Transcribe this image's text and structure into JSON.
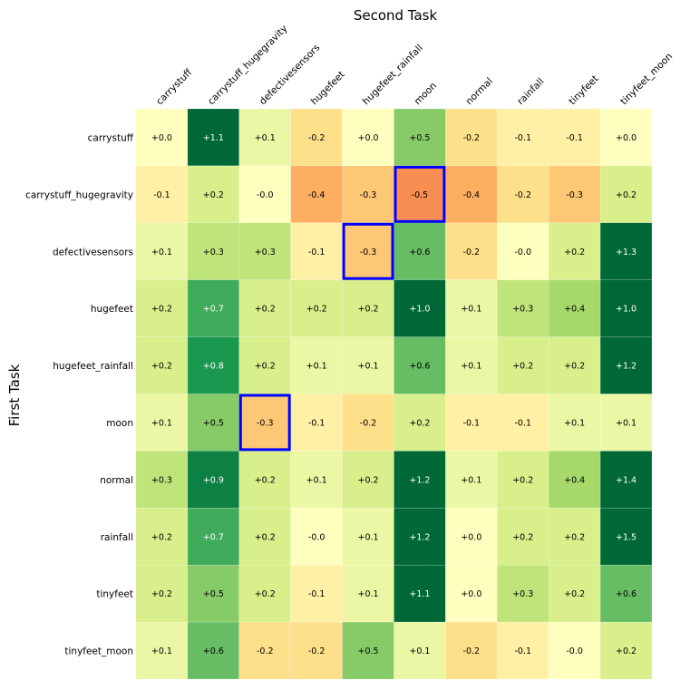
{
  "chart_data": {
    "type": "heatmap",
    "title": "Second Task",
    "xlabel": "Second Task",
    "ylabel": "First Task",
    "x_categories": [
      "carrystuff",
      "carrystuff_hugegravity",
      "defectivesensors",
      "hugefeet",
      "hugefeet_rainfall",
      "moon",
      "normal",
      "rainfall",
      "tinyfeet",
      "tinyfeet_moon"
    ],
    "y_categories": [
      "carrystuff",
      "carrystuff_hugegravity",
      "defectivesensors",
      "hugefeet",
      "hugefeet_rainfall",
      "moon",
      "normal",
      "rainfall",
      "tinyfeet",
      "tinyfeet_moon"
    ],
    "values": [
      [
        0.0,
        1.1,
        0.1,
        -0.2,
        0.0,
        0.5,
        -0.2,
        -0.1,
        -0.1,
        0.0
      ],
      [
        -0.1,
        0.2,
        -0.0,
        -0.4,
        -0.3,
        -0.5,
        -0.4,
        -0.2,
        -0.3,
        0.2
      ],
      [
        0.1,
        0.3,
        0.3,
        -0.1,
        -0.3,
        0.6,
        -0.2,
        -0.0,
        0.2,
        1.3
      ],
      [
        0.2,
        0.7,
        0.2,
        0.2,
        0.2,
        1.0,
        0.1,
        0.3,
        0.4,
        1.0
      ],
      [
        0.2,
        0.8,
        0.2,
        0.1,
        0.1,
        0.6,
        0.1,
        0.2,
        0.2,
        1.2
      ],
      [
        0.1,
        0.5,
        -0.3,
        -0.1,
        -0.2,
        0.2,
        -0.1,
        -0.1,
        0.1,
        0.1
      ],
      [
        0.3,
        0.9,
        0.2,
        0.1,
        0.2,
        1.2,
        0.1,
        0.2,
        0.4,
        1.4
      ],
      [
        0.2,
        0.7,
        0.2,
        -0.0,
        0.1,
        1.2,
        0.0,
        0.2,
        0.2,
        1.5
      ],
      [
        0.2,
        0.5,
        0.2,
        -0.1,
        0.1,
        1.1,
        0.0,
        0.3,
        0.2,
        0.6
      ],
      [
        0.1,
        0.6,
        -0.2,
        -0.2,
        0.5,
        0.1,
        -0.2,
        -0.1,
        -0.0,
        0.2
      ]
    ],
    "cell_labels": [
      [
        "+0.0",
        "+1.1",
        "+0.1",
        "-0.2",
        "+0.0",
        "+0.5",
        "-0.2",
        "-0.1",
        "-0.1",
        "+0.0"
      ],
      [
        "-0.1",
        "+0.2",
        "-0.0",
        "-0.4",
        "-0.3",
        "-0.5",
        "-0.4",
        "-0.2",
        "-0.3",
        "+0.2"
      ],
      [
        "+0.1",
        "+0.3",
        "+0.3",
        "-0.1",
        "-0.3",
        "+0.6",
        "-0.2",
        "-0.0",
        "+0.2",
        "+1.3"
      ],
      [
        "+0.2",
        "+0.7",
        "+0.2",
        "+0.2",
        "+0.2",
        "+1.0",
        "+0.1",
        "+0.3",
        "+0.4",
        "+1.0"
      ],
      [
        "+0.2",
        "+0.8",
        "+0.2",
        "+0.1",
        "+0.1",
        "+0.6",
        "+0.1",
        "+0.2",
        "+0.2",
        "+1.2"
      ],
      [
        "+0.1",
        "+0.5",
        "-0.3",
        "-0.1",
        "-0.2",
        "+0.2",
        "-0.1",
        "-0.1",
        "+0.1",
        "+0.1"
      ],
      [
        "+0.3",
        "+0.9",
        "+0.2",
        "+0.1",
        "+0.2",
        "+1.2",
        "+0.1",
        "+0.2",
        "+0.4",
        "+1.4"
      ],
      [
        "+0.2",
        "+0.7",
        "+0.2",
        "-0.0",
        "+0.1",
        "+1.2",
        "+0.0",
        "+0.2",
        "+0.2",
        "+1.5"
      ],
      [
        "+0.2",
        "+0.5",
        "+0.2",
        "-0.1",
        "+0.1",
        "+1.1",
        "+0.0",
        "+0.3",
        "+0.2",
        "+0.6"
      ],
      [
        "+0.1",
        "+0.6",
        "-0.2",
        "-0.2",
        "+0.5",
        "+0.1",
        "-0.2",
        "-0.1",
        "-0.0",
        "+0.2"
      ]
    ],
    "highlighted_cells": [
      {
        "row": 1,
        "col": 5
      },
      {
        "row": 2,
        "col": 4
      },
      {
        "row": 5,
        "col": 2
      }
    ],
    "colormap": "RdYlGn",
    "vmin": -1.0,
    "vmax": 1.0,
    "highlight_color": "#0000ff"
  }
}
